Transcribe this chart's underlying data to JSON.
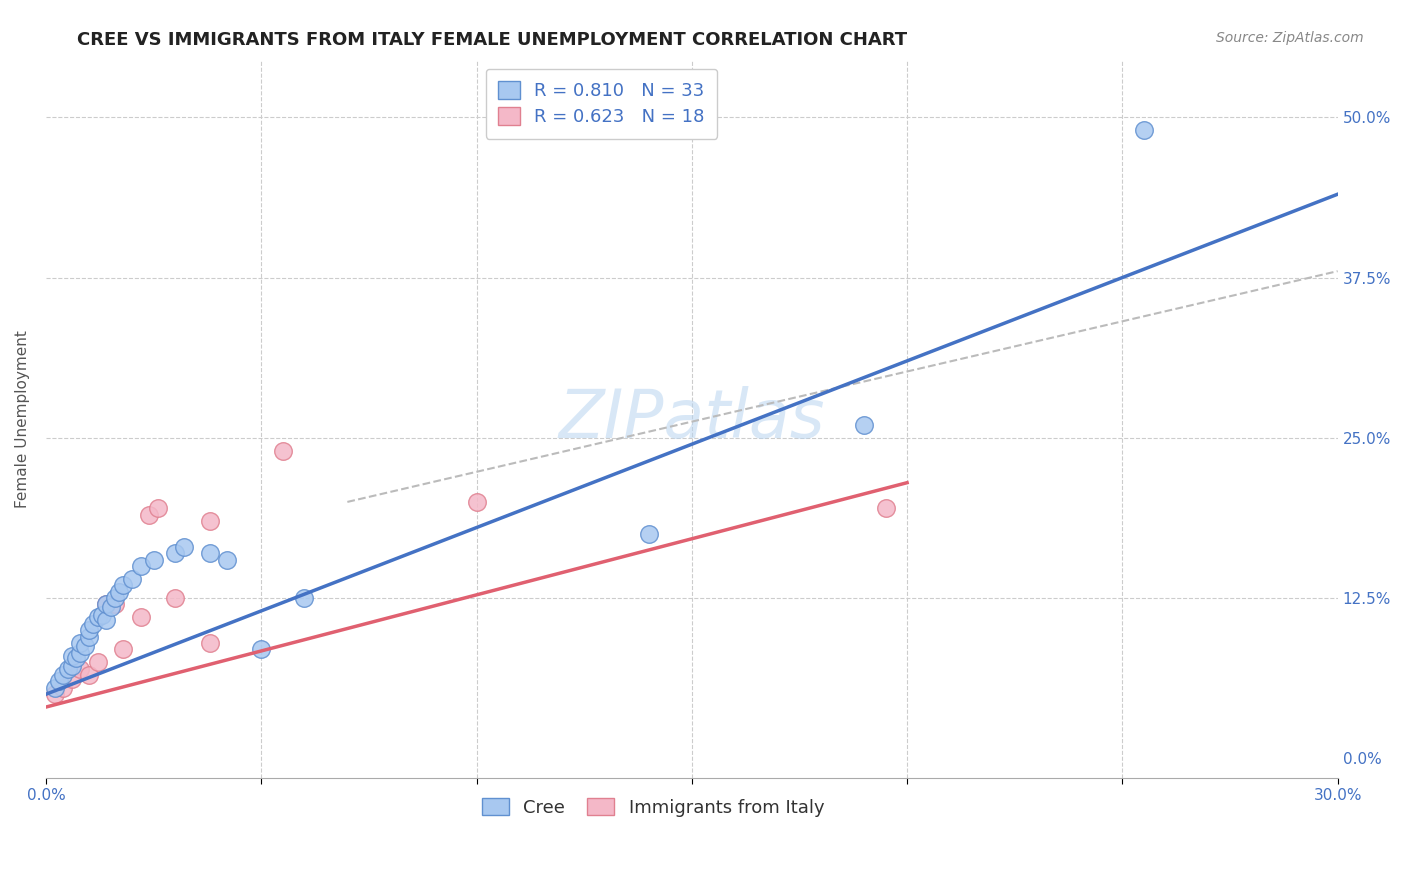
{
  "title": "CREE VS IMMIGRANTS FROM ITALY FEMALE UNEMPLOYMENT CORRELATION CHART",
  "source": "Source: ZipAtlas.com",
  "ylabel": "Female Unemployment",
  "ytick_values": [
    0.0,
    0.125,
    0.25,
    0.375,
    0.5
  ],
  "xlim": [
    0.0,
    0.3
  ],
  "ylim": [
    -0.015,
    0.545
  ],
  "watermark": "ZIPatlas",
  "legend_R1": "R = 0.810",
  "legend_N1": "N = 33",
  "legend_R2": "R = 0.623",
  "legend_N2": "N = 18",
  "color_blue_fill": "#a8c8f0",
  "color_pink_fill": "#f4b8c8",
  "color_blue_edge": "#6090d0",
  "color_pink_edge": "#e08090",
  "color_blue_line": "#4472c4",
  "color_pink_line": "#e06070",
  "color_dashed": "#bbbbbb",
  "color_tick": "#4472c4",
  "background": "#ffffff",
  "grid_color": "#cccccc",
  "cree_x": [
    0.002,
    0.003,
    0.004,
    0.005,
    0.006,
    0.006,
    0.007,
    0.008,
    0.008,
    0.009,
    0.01,
    0.01,
    0.011,
    0.012,
    0.013,
    0.014,
    0.014,
    0.015,
    0.016,
    0.017,
    0.018,
    0.02,
    0.022,
    0.025,
    0.03,
    0.032,
    0.038,
    0.042,
    0.05,
    0.06,
    0.14,
    0.19,
    0.255
  ],
  "cree_y": [
    0.055,
    0.06,
    0.065,
    0.07,
    0.072,
    0.08,
    0.078,
    0.082,
    0.09,
    0.088,
    0.095,
    0.1,
    0.105,
    0.11,
    0.112,
    0.108,
    0.12,
    0.118,
    0.125,
    0.13,
    0.135,
    0.14,
    0.15,
    0.155,
    0.16,
    0.165,
    0.16,
    0.155,
    0.085,
    0.125,
    0.175,
    0.26,
    0.49
  ],
  "italy_x": [
    0.002,
    0.004,
    0.006,
    0.008,
    0.01,
    0.012,
    0.014,
    0.016,
    0.018,
    0.022,
    0.024,
    0.026,
    0.03,
    0.038,
    0.038,
    0.055,
    0.1,
    0.195
  ],
  "italy_y": [
    0.05,
    0.055,
    0.062,
    0.07,
    0.065,
    0.075,
    0.12,
    0.12,
    0.085,
    0.11,
    0.19,
    0.195,
    0.125,
    0.185,
    0.09,
    0.24,
    0.2,
    0.195
  ],
  "title_fontsize": 13,
  "axis_label_fontsize": 11,
  "tick_fontsize": 11,
  "legend_fontsize": 13,
  "watermark_fontsize": 48,
  "source_fontsize": 10,
  "blue_line_x": [
    0.0,
    0.3
  ],
  "blue_line_y": [
    0.05,
    0.44
  ],
  "pink_line_x": [
    0.0,
    0.2
  ],
  "pink_line_y": [
    0.04,
    0.215
  ],
  "dashed_line_x": [
    0.07,
    0.3
  ],
  "dashed_line_y": [
    0.2,
    0.38
  ]
}
